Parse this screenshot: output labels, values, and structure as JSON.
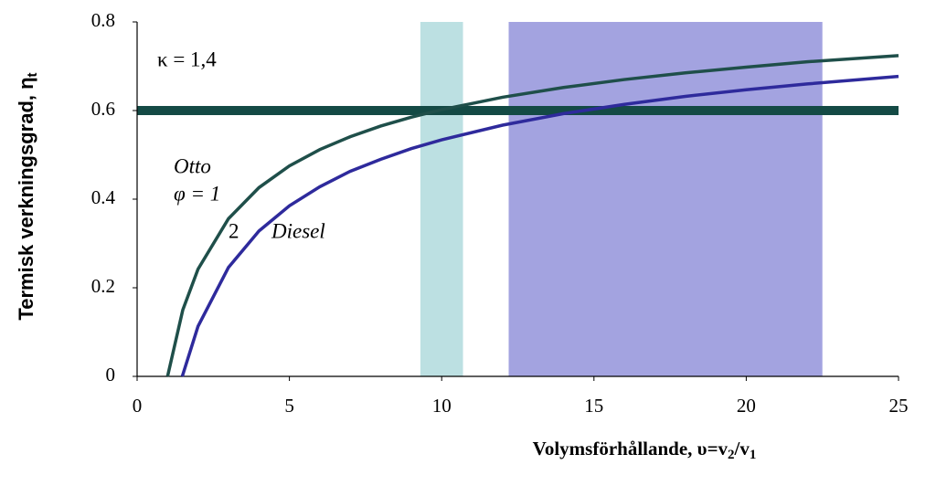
{
  "chart_data": {
    "type": "line",
    "ylabel": {
      "main": "Termisk verkningsgrad, η",
      "sub": "t"
    },
    "xlabel": [
      "Volymsförhållande, υ=v",
      "2",
      "/v",
      "1"
    ],
    "xlim": [
      0,
      25
    ],
    "xticks": [
      0,
      5,
      10,
      15,
      20,
      25
    ],
    "ylim": [
      0,
      0.8
    ],
    "yticks": [
      0,
      0.2,
      0.4,
      0.6,
      0.8
    ],
    "bands": [
      {
        "xlim": [
          9.3,
          10.7
        ],
        "color": "#bce0e2"
      },
      {
        "xlim": [
          12.2,
          22.5
        ],
        "color": "#a3a3e0"
      }
    ],
    "hline": {
      "y": 0.6,
      "color": "#144a45"
    },
    "series": [
      {
        "color": "#1f4f4a",
        "x": [
          1,
          1.5,
          2,
          3,
          4,
          5,
          6,
          7,
          8,
          9,
          10,
          12,
          14,
          16,
          18,
          20,
          22,
          25
        ],
        "values": [
          0,
          0.15,
          0.242,
          0.356,
          0.426,
          0.475,
          0.512,
          0.541,
          0.565,
          0.585,
          0.602,
          0.63,
          0.652,
          0.67,
          0.685,
          0.698,
          0.71,
          0.724
        ]
      },
      {
        "color": "#2e2a9c",
        "x": [
          1.483,
          2,
          3,
          4,
          5,
          6,
          7,
          8,
          9,
          10,
          12,
          14,
          16,
          18,
          20,
          22,
          25
        ],
        "values": [
          0,
          0.113,
          0.246,
          0.328,
          0.385,
          0.428,
          0.463,
          0.49,
          0.514,
          0.534,
          0.567,
          0.593,
          0.614,
          0.632,
          0.647,
          0.66,
          0.677
        ]
      }
    ],
    "annotations": [
      "κ = 1,4",
      "Otto",
      "φ = 1",
      "2",
      "Diesel"
    ]
  }
}
